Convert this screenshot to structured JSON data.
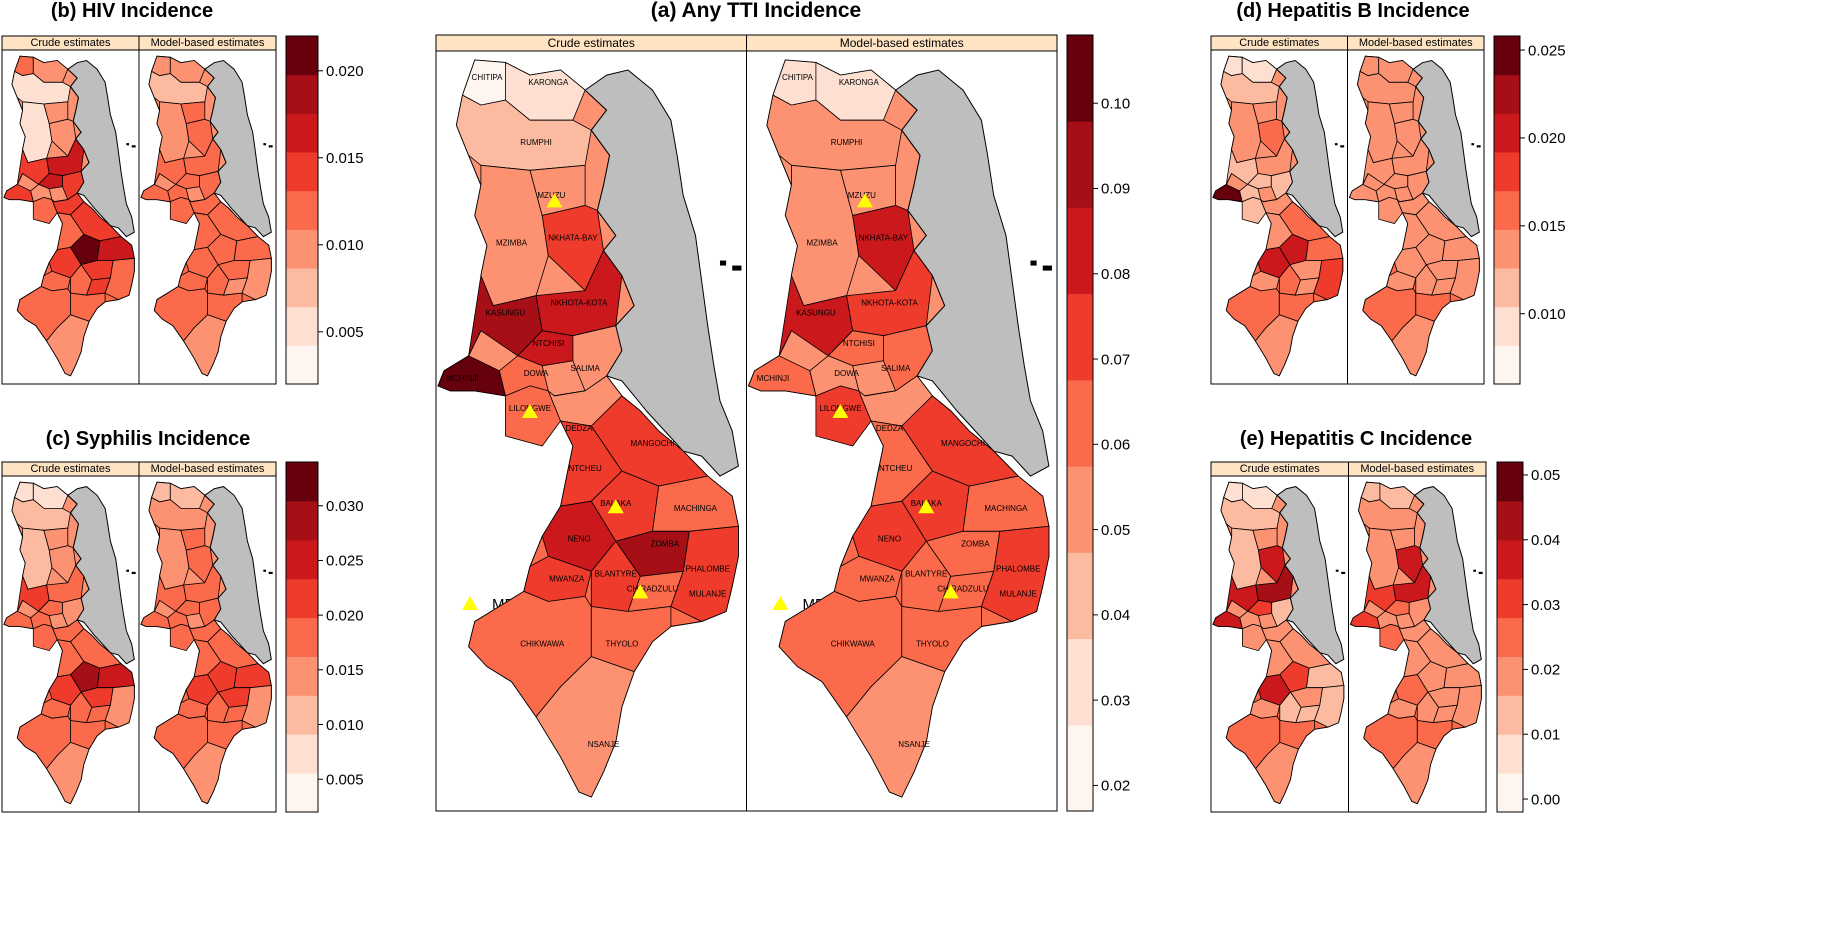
{
  "colors": {
    "scale": [
      "#fff5f0",
      "#fee0d2",
      "#fcbba1",
      "#fc9272",
      "#fb6a4a",
      "#ef3b2c",
      "#cb181d",
      "#a50f15",
      "#67000d"
    ],
    "lake": "#bebebe",
    "strip": "#ffe4c4",
    "marker": "#ffff00"
  },
  "strip_labels": {
    "crude": "Crude estimates",
    "model": "Model-based estimates"
  },
  "legend": {
    "label": "MBTS Centers",
    "marker_icon": "triangle-icon"
  },
  "panels": [
    {
      "key": "b",
      "title": "(b) HIV Incidence",
      "colorbar": {
        "min": 0.002,
        "max": 0.022,
        "ticks": [
          "0.005",
          "0.010",
          "0.015",
          "0.020"
        ],
        "tick_values": [
          0.005,
          0.01,
          0.015,
          0.02
        ]
      },
      "crude": [
        4,
        3,
        1,
        1,
        3,
        3,
        5,
        6,
        6,
        3,
        5,
        5,
        4,
        5,
        5,
        4,
        8,
        6,
        5,
        5,
        4,
        4,
        5,
        4
      ],
      "model": [
        3,
        3,
        2,
        3,
        4,
        4,
        4,
        4,
        4,
        4,
        4,
        4,
        4,
        4,
        4,
        4,
        4,
        4,
        4,
        4,
        4,
        4,
        3,
        3
      ]
    },
    {
      "key": "c",
      "title": "(c) Syphilis Incidence",
      "colorbar": {
        "min": 0.002,
        "max": 0.034,
        "ticks": [
          "0.005",
          "0.010",
          "0.015",
          "0.020",
          "0.025",
          "0.030"
        ],
        "tick_values": [
          0.005,
          0.01,
          0.015,
          0.02,
          0.025,
          0.03
        ]
      },
      "crude": [
        1,
        1,
        2,
        2,
        3,
        3,
        5,
        4,
        4,
        4,
        3,
        4,
        4,
        4,
        4,
        4,
        7,
        6,
        5,
        5,
        4,
        4,
        4,
        3
      ],
      "model": [
        2,
        2,
        3,
        3,
        4,
        4,
        4,
        4,
        4,
        4,
        4,
        4,
        4,
        4,
        4,
        4,
        5,
        5,
        5,
        5,
        4,
        4,
        4,
        3
      ]
    },
    {
      "key": "a",
      "title": "(a) Any TTI Incidence",
      "colorbar": {
        "min": 0.017,
        "max": 0.108,
        "ticks": [
          "0.02",
          "0.03",
          "0.04",
          "0.05",
          "0.06",
          "0.07",
          "0.08",
          "0.09",
          "0.10"
        ],
        "tick_values": [
          0.02,
          0.03,
          0.04,
          0.05,
          0.06,
          0.07,
          0.08,
          0.09,
          0.1
        ]
      },
      "crude": [
        0,
        1,
        2,
        3,
        5,
        3,
        7,
        6,
        6,
        4,
        3,
        8,
        4,
        3,
        5,
        5,
        5,
        4,
        7,
        6,
        5,
        5,
        4,
        5
      ],
      "model": [
        1,
        1,
        3,
        3,
        6,
        3,
        6,
        5,
        4,
        3,
        4,
        4,
        5,
        3,
        5,
        4,
        5,
        4,
        4,
        5,
        4,
        4,
        4,
        5
      ],
      "district_labels": [
        "CHITIPA",
        "KARONGA",
        "RUMPHI",
        "MZUZU",
        "NKHATA-BAY",
        "MZIMBA",
        "KASUNGU",
        "NKHOTA-KOTA",
        "NTCHISI",
        "DOWA",
        "SALIMA",
        "MCHINJI",
        "LILONGWE",
        "DEDZA",
        "MANGOCHI",
        "NTCHEU",
        "BALAKA",
        "MACHINGA",
        "ZOMBA",
        "NENO",
        "MWANZA",
        "BLANTYRE",
        "CHIRADZULU",
        "PHALOMBE",
        "MULANJE",
        "CHIKWAWA",
        "THYOLO",
        "NSANJE"
      ]
    },
    {
      "key": "d",
      "title": "(d) Hepatitis B Incidence",
      "colorbar": {
        "min": 0.006,
        "max": 0.0258,
        "ticks": [
          "0.010",
          "0.015",
          "0.020",
          "0.025"
        ],
        "tick_values": [
          0.01,
          0.015,
          0.02,
          0.025
        ]
      },
      "crude": [
        1,
        1,
        2,
        3,
        4,
        3,
        2,
        3,
        2,
        2,
        2,
        8,
        2,
        3,
        4,
        3,
        6,
        4,
        3,
        6,
        3,
        4,
        3,
        5
      ],
      "model": [
        3,
        3,
        3,
        3,
        3,
        3,
        3,
        3,
        3,
        3,
        3,
        3,
        3,
        3,
        3,
        3,
        3,
        3,
        3,
        3,
        3,
        3,
        3,
        3
      ]
    },
    {
      "key": "e",
      "title": "(e) Hepatitis C Incidence",
      "colorbar": {
        "min": -0.002,
        "max": 0.052,
        "ticks": [
          "0.00",
          "0.01",
          "0.02",
          "0.03",
          "0.04",
          "0.05"
        ],
        "tick_values": [
          0.0,
          0.01,
          0.02,
          0.03,
          0.04,
          0.05
        ]
      },
      "crude": [
        1,
        1,
        2,
        2,
        6,
        3,
        6,
        7,
        5,
        3,
        2,
        6,
        3,
        3,
        3,
        3,
        5,
        2,
        3,
        6,
        3,
        2,
        2,
        2
      ],
      "model": [
        2,
        2,
        3,
        3,
        6,
        3,
        5,
        6,
        4,
        3,
        3,
        5,
        4,
        3,
        3,
        3,
        3,
        3,
        3,
        4,
        3,
        3,
        3,
        3
      ]
    }
  ]
}
